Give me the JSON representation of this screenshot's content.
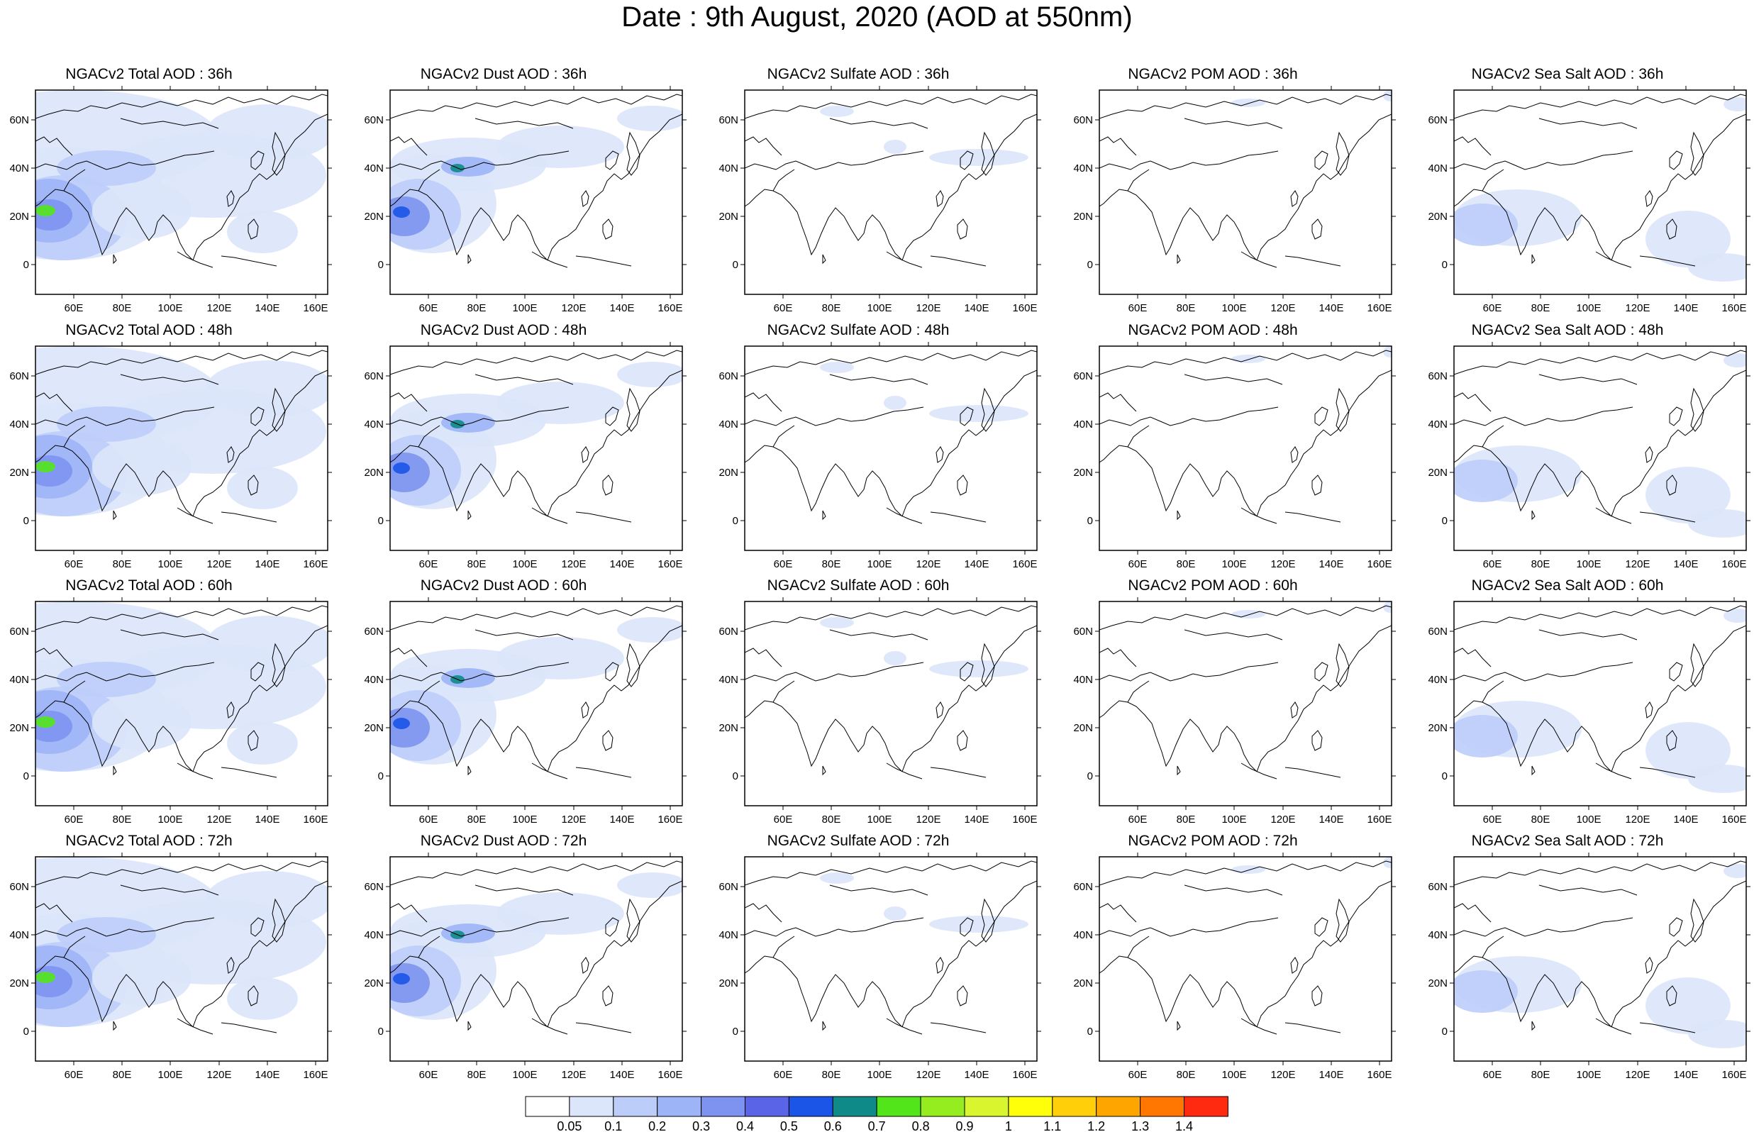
{
  "title": "Date : 9th August, 2020 (AOD at 550nm)",
  "lat_ticks": [
    "60N",
    "40N",
    "20N",
    "0"
  ],
  "lon_ticks": [
    "60E",
    "80E",
    "100E",
    "120E",
    "140E",
    "160E"
  ],
  "colorbar": {
    "labels": [
      "0.05",
      "0.1",
      "0.2",
      "0.3",
      "0.4",
      "0.5",
      "0.6",
      "0.7",
      "0.8",
      "0.9",
      "1",
      "1.1",
      "1.2",
      "1.3",
      "1.4"
    ],
    "colors": [
      "#ffffff",
      "#dce6fb",
      "#bccdfa",
      "#9db4f6",
      "#7d93ef",
      "#5a64e6",
      "#1a55e8",
      "#0e8b88",
      "#52e61a",
      "#95ec1f",
      "#d8f52e",
      "#ffff0a",
      "#ffcf0a",
      "#ffa500",
      "#ff7600",
      "#ff2a10"
    ]
  },
  "panels": [
    {
      "title": "NGACv2 Total AOD : 36h"
    },
    {
      "title": "NGACv2 Dust AOD : 36h"
    },
    {
      "title": "NGACv2 Sulfate AOD : 36h"
    },
    {
      "title": "NGACv2 POM AOD : 36h"
    },
    {
      "title": "NGACv2 Sea Salt AOD : 36h"
    },
    {
      "title": "NGACv2 Total AOD : 48h"
    },
    {
      "title": "NGACv2 Dust AOD : 48h"
    },
    {
      "title": "NGACv2 Sulfate AOD : 48h"
    },
    {
      "title": "NGACv2 POM AOD : 48h"
    },
    {
      "title": "NGACv2 Sea Salt AOD : 48h"
    },
    {
      "title": "NGACv2 Total AOD : 60h"
    },
    {
      "title": "NGACv2 Dust AOD : 60h"
    },
    {
      "title": "NGACv2 Sulfate AOD : 60h"
    },
    {
      "title": "NGACv2 POM AOD : 60h"
    },
    {
      "title": "NGACv2 Sea Salt AOD : 60h"
    },
    {
      "title": "NGACv2 Total AOD : 72h"
    },
    {
      "title": "NGACv2 Dust AOD : 72h"
    },
    {
      "title": "NGACv2 Sulfate AOD : 72h"
    },
    {
      "title": "NGACv2 POM AOD : 72h"
    },
    {
      "title": "NGACv2 Sea Salt  AOD : 72h"
    }
  ]
}
